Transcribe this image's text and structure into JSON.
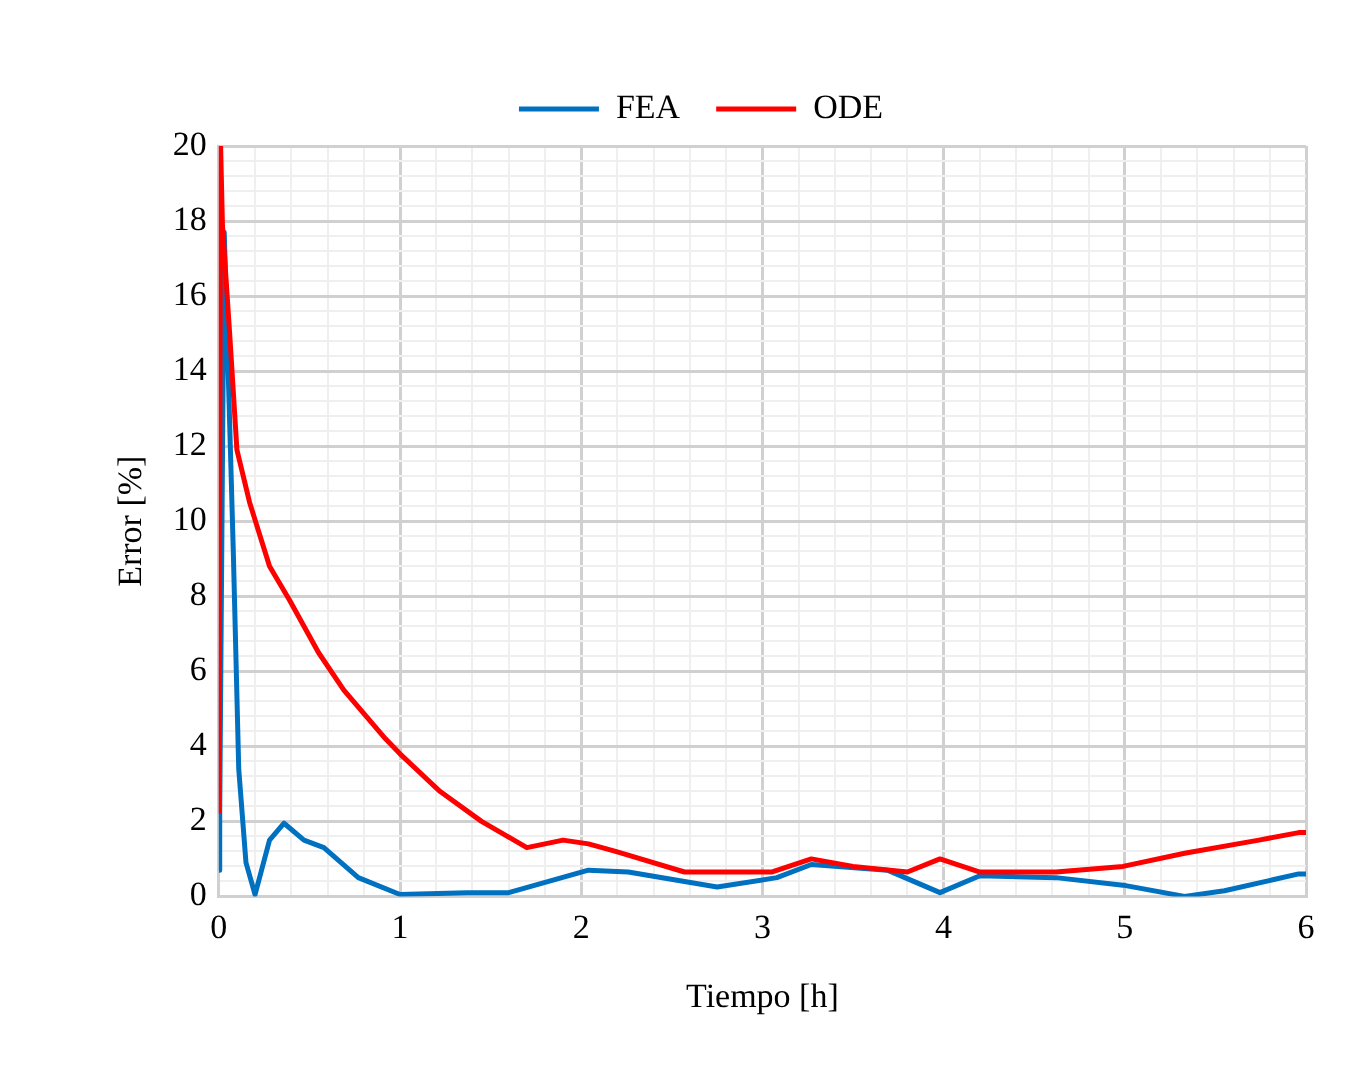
{
  "chart_data": {
    "type": "line",
    "xlabel": "Tiempo [h]",
    "ylabel": "Error [%]",
    "legend": "top",
    "grid": true,
    "marker": "none",
    "line_style": "solid",
    "xlim": [
      0,
      6
    ],
    "ylim": [
      0,
      20
    ],
    "xticks": [
      0,
      {
        "value": 0.2,
        "label": null
      },
      {
        "value": 0.4,
        "label": null
      },
      {
        "value": 0.6,
        "label": null
      },
      {
        "value": 0.8,
        "label": null
      },
      1,
      {
        "value": 1.2,
        "label": null
      },
      {
        "value": 1.4,
        "label": null
      },
      {
        "value": 1.6,
        "label": null
      },
      {
        "value": 1.8,
        "label": null
      },
      2,
      {
        "value": 2.2,
        "label": null
      },
      {
        "value": 2.4,
        "label": null
      },
      {
        "value": 2.6,
        "label": null
      },
      {
        "value": 2.8,
        "label": null
      },
      3,
      {
        "value": 3.2,
        "label": null
      },
      {
        "value": 3.4,
        "label": null
      },
      {
        "value": 3.6,
        "label": null
      },
      {
        "value": 3.8,
        "label": null
      },
      4,
      {
        "value": 4.2,
        "label": null
      },
      {
        "value": 4.4,
        "label": null
      },
      {
        "value": 4.6,
        "label": null
      },
      {
        "value": 4.8,
        "label": null
      },
      5,
      {
        "value": 5.2,
        "label": null
      },
      {
        "value": 5.4,
        "label": null
      },
      {
        "value": 5.6,
        "label": null
      },
      {
        "value": 5.8,
        "label": null
      },
      6
    ],
    "yticks": [
      0,
      {
        "value": 0.4,
        "label": null
      },
      {
        "value": 0.8,
        "label": null
      },
      {
        "value": 1.2,
        "label": null
      },
      {
        "value": 1.6,
        "label": null
      },
      2,
      {
        "value": 2.4,
        "label": null
      },
      {
        "value": 2.8,
        "label": null
      },
      {
        "value": 3.2,
        "label": null
      },
      {
        "value": 3.6,
        "label": null
      },
      4,
      {
        "value": 4.4,
        "label": null
      },
      {
        "value": 4.8,
        "label": null
      },
      {
        "value": 5.2,
        "label": null
      },
      {
        "value": 5.6,
        "label": null
      },
      6,
      {
        "value": 6.4,
        "label": null
      },
      {
        "value": 6.8,
        "label": null
      },
      {
        "value": 7.2,
        "label": null
      },
      {
        "value": 7.6,
        "label": null
      },
      8,
      {
        "value": 8.4,
        "label": null
      },
      {
        "value": 8.8,
        "label": null
      },
      {
        "value": 9.2,
        "label": null
      },
      {
        "value": 9.6,
        "label": null
      },
      10,
      {
        "value": 10.4,
        "label": null
      },
      {
        "value": 10.8,
        "label": null
      },
      {
        "value": 11.2,
        "label": null
      },
      {
        "value": 11.6,
        "label": null
      },
      12,
      {
        "value": 12.4,
        "label": null
      },
      {
        "value": 12.8,
        "label": null
      },
      {
        "value": 13.2,
        "label": null
      },
      {
        "value": 13.6,
        "label": null
      },
      14,
      {
        "value": 14.4,
        "label": null
      },
      {
        "value": 14.8,
        "label": null
      },
      {
        "value": 15.2,
        "label": null
      },
      {
        "value": 15.6,
        "label": null
      },
      16,
      {
        "value": 16.4,
        "label": null
      },
      {
        "value": 16.8,
        "label": null
      },
      {
        "value": 17.2,
        "label": null
      },
      {
        "value": 17.6,
        "label": null
      },
      18,
      {
        "value": 18.4,
        "label": null
      },
      {
        "value": 18.8,
        "label": null
      },
      {
        "value": 19.2,
        "label": null
      },
      {
        "value": 19.6,
        "label": null
      },
      20
    ],
    "series": [
      {
        "name": "FEA",
        "color": "#0070c0",
        "x": [
          0,
          0.005,
          0.03,
          0.08,
          0.11,
          0.15,
          0.2,
          0.28,
          0.36,
          0.47,
          0.58,
          0.77,
          1.0,
          1.37,
          1.6,
          1.82,
          2.04,
          2.26,
          2.75,
          3.08,
          3.27,
          3.69,
          3.98,
          4.2,
          4.62,
          4.99,
          5.33,
          5.55,
          5.96,
          6
        ],
        "values": [
          0.7,
          2.2,
          17.7,
          9.2,
          3.4,
          0.9,
          0.05,
          1.5,
          1.95,
          1.5,
          1.3,
          0.5,
          0.05,
          0.1,
          0.1,
          0.4,
          0.7,
          0.65,
          0.25,
          0.5,
          0.85,
          0.7,
          0.1,
          0.55,
          0.5,
          0.3,
          0.0,
          0.15,
          0.6,
          0.6
        ]
      },
      {
        "name": "ODE",
        "color": "#ff0000",
        "x": [
          0,
          0.01,
          0.02,
          0.06,
          0.1,
          0.17,
          0.28,
          0.39,
          0.55,
          0.69,
          0.92,
          1.0,
          1.22,
          1.45,
          1.7,
          1.9,
          2.04,
          2.19,
          2.57,
          3.05,
          3.27,
          3.5,
          3.8,
          3.98,
          4.2,
          4.62,
          4.99,
          5.33,
          5.74,
          5.96,
          6
        ],
        "values": [
          2.2,
          20,
          17.9,
          15,
          11.9,
          10.5,
          8.8,
          7.9,
          6.5,
          5.5,
          4.2,
          3.8,
          2.8,
          2.0,
          1.3,
          1.5,
          1.4,
          1.2,
          0.65,
          0.65,
          1.0,
          0.8,
          0.65,
          1.0,
          0.65,
          0.65,
          0.8,
          1.15,
          1.5,
          1.7,
          1.7
        ]
      }
    ]
  }
}
